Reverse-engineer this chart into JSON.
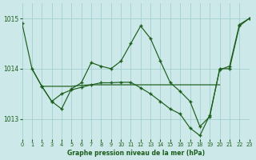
{
  "title": "Graphe pression niveau de la mer (hPa)",
  "bg_color": "#cce8e8",
  "grid_color": "#99cccc",
  "line_color": "#1b5e1b",
  "xlim": [
    0,
    23
  ],
  "ylim": [
    1012.6,
    1015.3
  ],
  "yticks": [
    1013,
    1014,
    1015
  ],
  "xticks": [
    0,
    1,
    2,
    3,
    4,
    5,
    6,
    7,
    8,
    9,
    10,
    11,
    12,
    13,
    14,
    15,
    16,
    17,
    18,
    19,
    20,
    21,
    22,
    23
  ],
  "s1_x": [
    0,
    1,
    2,
    3,
    4,
    5,
    6,
    7,
    8,
    9,
    10,
    11,
    12,
    13,
    14,
    15,
    16,
    17,
    18,
    19,
    20,
    21,
    22,
    23
  ],
  "s1_y": [
    1014.9,
    1014.0,
    1013.65,
    1013.35,
    1013.2,
    1013.6,
    1013.72,
    1014.12,
    1014.05,
    1014.0,
    1014.15,
    1014.5,
    1014.85,
    1014.6,
    1014.15,
    1013.72,
    1013.55,
    1013.35,
    1012.85,
    1013.05,
    1014.0,
    1014.0,
    1014.85,
    1015.0
  ],
  "s2_x": [
    1,
    2,
    3,
    4,
    5,
    6,
    7,
    8,
    9,
    10,
    11,
    12,
    13,
    14,
    15,
    16,
    17,
    18,
    19,
    20
  ],
  "s2_y": [
    1014.0,
    1013.65,
    1013.65,
    1013.65,
    1013.65,
    1013.67,
    1013.68,
    1013.68,
    1013.68,
    1013.68,
    1013.68,
    1013.68,
    1013.68,
    1013.68,
    1013.68,
    1013.68,
    1013.68,
    1013.68,
    1013.68,
    1013.68
  ],
  "s3_x": [
    2,
    3,
    4,
    5,
    6,
    7,
    8,
    9,
    10,
    11,
    12,
    13,
    14,
    15,
    16,
    17,
    18,
    19,
    20,
    21,
    22,
    23
  ],
  "s3_y": [
    1013.65,
    1013.35,
    1013.5,
    1013.58,
    1013.63,
    1013.68,
    1013.72,
    1013.72,
    1013.73,
    1013.73,
    1013.62,
    1013.5,
    1013.35,
    1013.2,
    1013.1,
    1012.82,
    1012.67,
    1013.08,
    1013.98,
    1014.05,
    1014.88,
    1015.0
  ]
}
